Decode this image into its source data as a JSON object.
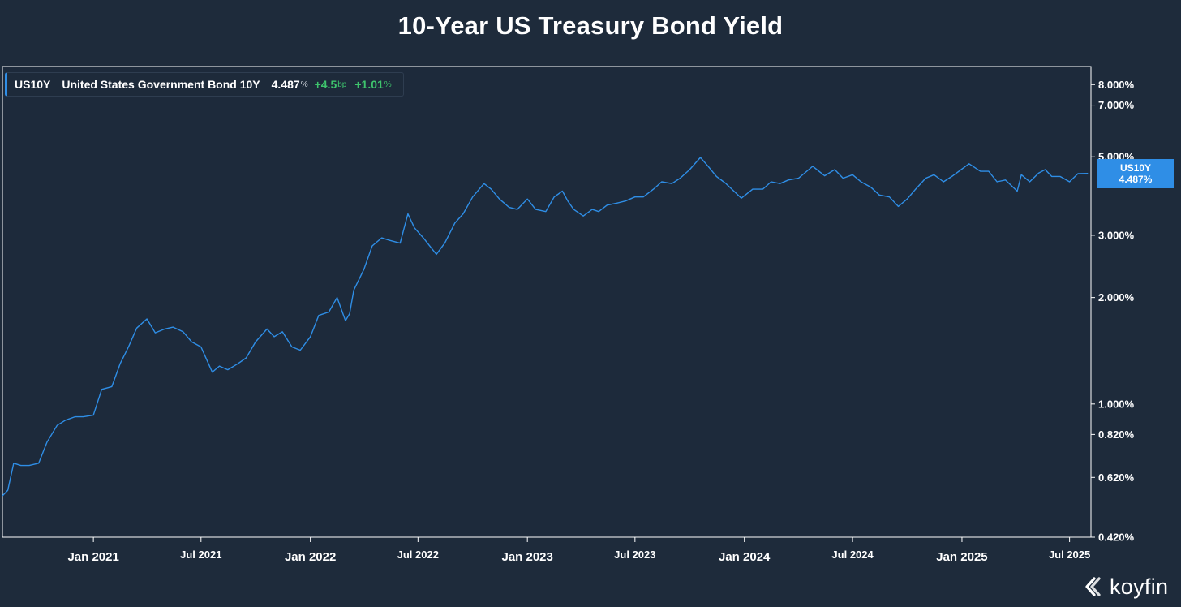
{
  "chart_data": {
    "type": "line",
    "title": "10-Year US Treasury Bond Yield",
    "y_scale": "log",
    "ylim": [
      0.42,
      9.0
    ],
    "y_ticks": [
      {
        "value": 8.0,
        "label": "8.000%"
      },
      {
        "value": 7.0,
        "label": "7.000%"
      },
      {
        "value": 5.0,
        "label": "5.000%"
      },
      {
        "value": 3.0,
        "label": "3.000%"
      },
      {
        "value": 2.0,
        "label": "2.000%"
      },
      {
        "value": 1.0,
        "label": "1.000%"
      },
      {
        "value": 0.82,
        "label": "0.820%"
      },
      {
        "value": 0.62,
        "label": "0.620%"
      },
      {
        "value": 0.42,
        "label": "0.420%"
      }
    ],
    "xlim": [
      "2020-08-01",
      "2025-08-06"
    ],
    "x_ticks": [
      {
        "date": "2021-01-01",
        "label": "Jan 2021",
        "major": true
      },
      {
        "date": "2021-07-01",
        "label": "Jul 2021",
        "major": false
      },
      {
        "date": "2022-01-01",
        "label": "Jan 2022",
        "major": true
      },
      {
        "date": "2022-07-01",
        "label": "Jul 2022",
        "major": false
      },
      {
        "date": "2023-01-01",
        "label": "Jan 2023",
        "major": true
      },
      {
        "date": "2023-07-01",
        "label": "Jul 2023",
        "major": false
      },
      {
        "date": "2024-01-01",
        "label": "Jan 2024",
        "major": true
      },
      {
        "date": "2024-07-01",
        "label": "Jul 2024",
        "major": false
      },
      {
        "date": "2025-01-01",
        "label": "Jan 2025",
        "major": true
      },
      {
        "date": "2025-07-01",
        "label": "Jul 2025",
        "major": false
      }
    ],
    "grid": false,
    "line_color": "#2f8ee6",
    "series": [
      {
        "name": "US10Y",
        "x": [
          "2020-08-01",
          "2020-08-10",
          "2020-08-20",
          "2020-09-01",
          "2020-09-15",
          "2020-10-01",
          "2020-10-15",
          "2020-11-01",
          "2020-11-15",
          "2020-12-01",
          "2020-12-15",
          "2021-01-01",
          "2021-01-15",
          "2021-02-01",
          "2021-02-15",
          "2021-03-01",
          "2021-03-15",
          "2021-04-01",
          "2021-04-15",
          "2021-05-01",
          "2021-05-15",
          "2021-06-01",
          "2021-06-15",
          "2021-07-01",
          "2021-07-20",
          "2021-08-01",
          "2021-08-15",
          "2021-09-01",
          "2021-09-15",
          "2021-10-01",
          "2021-10-20",
          "2021-11-01",
          "2021-11-15",
          "2021-12-01",
          "2021-12-15",
          "2022-01-01",
          "2022-01-15",
          "2022-02-01",
          "2022-02-15",
          "2022-03-01",
          "2022-03-08",
          "2022-03-15",
          "2022-04-01",
          "2022-04-15",
          "2022-05-01",
          "2022-05-15",
          "2022-06-01",
          "2022-06-14",
          "2022-06-25",
          "2022-07-10",
          "2022-08-01",
          "2022-08-15",
          "2022-09-01",
          "2022-09-15",
          "2022-10-01",
          "2022-10-20",
          "2022-11-01",
          "2022-11-15",
          "2022-12-01",
          "2022-12-15",
          "2023-01-01",
          "2023-01-15",
          "2023-02-01",
          "2023-02-15",
          "2023-03-01",
          "2023-03-10",
          "2023-03-20",
          "2023-04-05",
          "2023-04-20",
          "2023-05-01",
          "2023-05-15",
          "2023-06-01",
          "2023-06-15",
          "2023-07-01",
          "2023-07-15",
          "2023-08-01",
          "2023-08-15",
          "2023-09-01",
          "2023-09-15",
          "2023-10-01",
          "2023-10-19",
          "2023-11-01",
          "2023-11-15",
          "2023-12-01",
          "2023-12-27",
          "2024-01-15",
          "2024-02-01",
          "2024-02-15",
          "2024-03-01",
          "2024-03-15",
          "2024-04-01",
          "2024-04-25",
          "2024-05-15",
          "2024-06-01",
          "2024-06-15",
          "2024-07-01",
          "2024-07-15",
          "2024-08-01",
          "2024-08-15",
          "2024-09-01",
          "2024-09-16",
          "2024-10-01",
          "2024-10-15",
          "2024-11-01",
          "2024-11-15",
          "2024-12-01",
          "2024-12-15",
          "2025-01-13",
          "2025-02-01",
          "2025-02-15",
          "2025-03-01",
          "2025-03-15",
          "2025-04-04",
          "2025-04-11",
          "2025-04-25",
          "2025-05-10",
          "2025-05-21",
          "2025-06-01",
          "2025-06-15",
          "2025-07-01",
          "2025-07-15",
          "2025-08-01"
        ],
        "values": [
          0.55,
          0.57,
          0.68,
          0.67,
          0.67,
          0.68,
          0.78,
          0.87,
          0.9,
          0.92,
          0.92,
          0.93,
          1.1,
          1.12,
          1.3,
          1.45,
          1.64,
          1.74,
          1.59,
          1.63,
          1.65,
          1.6,
          1.5,
          1.45,
          1.23,
          1.28,
          1.25,
          1.3,
          1.35,
          1.5,
          1.63,
          1.55,
          1.6,
          1.45,
          1.42,
          1.55,
          1.78,
          1.82,
          2.0,
          1.72,
          1.8,
          2.1,
          2.4,
          2.8,
          2.95,
          2.9,
          2.85,
          3.45,
          3.15,
          2.95,
          2.65,
          2.85,
          3.25,
          3.45,
          3.85,
          4.2,
          4.05,
          3.8,
          3.6,
          3.55,
          3.8,
          3.55,
          3.5,
          3.85,
          4.0,
          3.75,
          3.55,
          3.4,
          3.55,
          3.5,
          3.65,
          3.7,
          3.75,
          3.85,
          3.85,
          4.05,
          4.25,
          4.2,
          4.35,
          4.6,
          4.98,
          4.7,
          4.4,
          4.2,
          3.82,
          4.05,
          4.05,
          4.25,
          4.2,
          4.3,
          4.35,
          4.7,
          4.42,
          4.6,
          4.35,
          4.45,
          4.25,
          4.1,
          3.9,
          3.85,
          3.62,
          3.8,
          4.05,
          4.35,
          4.45,
          4.25,
          4.4,
          4.78,
          4.55,
          4.55,
          4.25,
          4.3,
          4.0,
          4.45,
          4.25,
          4.5,
          4.6,
          4.4,
          4.4,
          4.25,
          4.48,
          4.487
        ]
      }
    ],
    "last_tag": {
      "symbol": "US10Y",
      "value": "4.487%"
    },
    "legend": {
      "symbol": "US10Y",
      "name": "United States Government Bond 10Y",
      "price": "4.487",
      "price_unit": "%",
      "change": "+4.5",
      "change_unit": "bp",
      "change_pct": "+1.01",
      "change_pct_unit": "%"
    },
    "brand": "koyfin"
  }
}
